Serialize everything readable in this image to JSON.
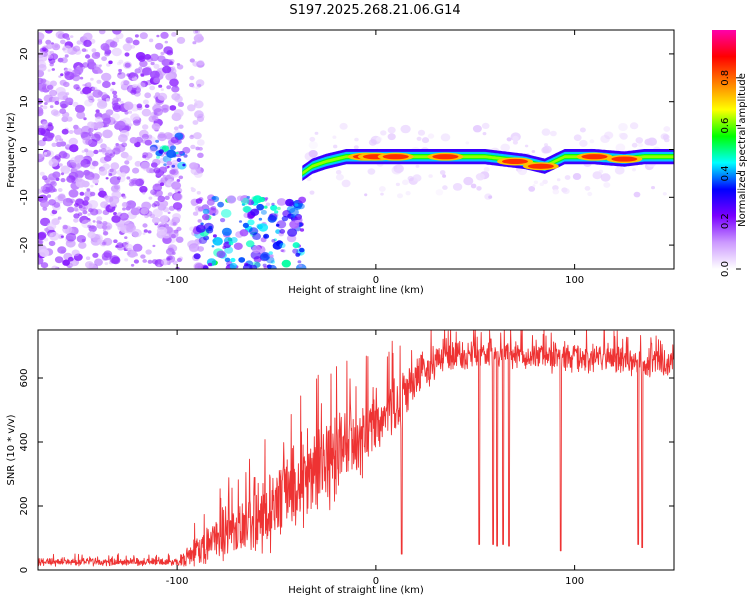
{
  "title": "S197.2025.268.21.06.G14",
  "chart_data": [
    {
      "type": "heatmap",
      "id": "spectrogram",
      "xlabel": "Height of straight line (km)",
      "ylabel": "Frequency (Hz)",
      "xlim": [
        -170,
        150
      ],
      "ylim": [
        -25,
        25
      ],
      "xticks": [
        -100,
        0,
        100
      ],
      "yticks": [
        -20,
        -10,
        0,
        10,
        20
      ],
      "colorbar": {
        "label": "Normalized spectral amplitude",
        "range": [
          0,
          1
        ],
        "ticks": [
          0.0,
          0.2,
          0.4,
          0.6,
          0.8
        ],
        "tick_labels": [
          "0.0",
          "0.2",
          "0.4",
          "0.6",
          "0.8"
        ],
        "colormap": [
          "#ffffff",
          "#cc99ff",
          "#7a00ff",
          "#0000ff",
          "#00ffff",
          "#00ff00",
          "#ffff00",
          "#ff8000",
          "#ff0000",
          "#ff00aa"
        ]
      },
      "regions": [
        {
          "name": "noise-left",
          "x": [
            -170,
            -98
          ],
          "f": [
            -25,
            25
          ],
          "amplitude": 0.15
        },
        {
          "name": "cluster-left",
          "x": [
            -113,
            -95
          ],
          "f": [
            -4,
            3
          ],
          "amplitude": 0.35
        },
        {
          "name": "noise-mid",
          "x": [
            -93,
            -88
          ],
          "f": [
            -25,
            25
          ],
          "amplitude": 0.1
        },
        {
          "name": "low-patch",
          "x": [
            -90,
            -37
          ],
          "f": [
            -25,
            -10
          ],
          "amplitude": 0.35
        },
        {
          "name": "noise-right",
          "x": [
            -37,
            150
          ],
          "f": [
            -10,
            5
          ],
          "amplitude": 0.05
        }
      ],
      "ridge": [
        {
          "x": -37,
          "f": -5
        },
        {
          "x": -32,
          "f": -3.5
        },
        {
          "x": -25,
          "f": -2.5
        },
        {
          "x": -15,
          "f": -1.5
        },
        {
          "x": 0,
          "f": -1.5
        },
        {
          "x": 20,
          "f": -1.5
        },
        {
          "x": 40,
          "f": -1.5
        },
        {
          "x": 55,
          "f": -1.5
        },
        {
          "x": 65,
          "f": -2
        },
        {
          "x": 75,
          "f": -2.5
        },
        {
          "x": 85,
          "f": -3.5
        },
        {
          "x": 95,
          "f": -1.5
        },
        {
          "x": 110,
          "f": -1.5
        },
        {
          "x": 125,
          "f": -2
        },
        {
          "x": 135,
          "f": -1.5
        },
        {
          "x": 150,
          "f": -1.5
        }
      ],
      "ridge_peaks": [
        {
          "x": -5,
          "f": -1.5
        },
        {
          "x": 0,
          "f": -1.5
        },
        {
          "x": 10,
          "f": -1.5
        },
        {
          "x": 35,
          "f": -1.5
        },
        {
          "x": 70,
          "f": -2.5
        },
        {
          "x": 83,
          "f": -3.5
        },
        {
          "x": 110,
          "f": -1.5
        },
        {
          "x": 125,
          "f": -2
        }
      ]
    },
    {
      "type": "line",
      "id": "snr",
      "xlabel": "Height of straight line (km)",
      "ylabel": "SNR (10 * v/v)",
      "xlim": [
        -170,
        150
      ],
      "ylim": [
        0,
        750
      ],
      "xticks": [
        -100,
        0,
        100
      ],
      "yticks": [
        0,
        200,
        400,
        600
      ],
      "color": "#ee3333",
      "trend": [
        {
          "x": -170,
          "y": 25
        },
        {
          "x": -100,
          "y": 25
        },
        {
          "x": -90,
          "y": 55
        },
        {
          "x": -80,
          "y": 95
        },
        {
          "x": -70,
          "y": 130
        },
        {
          "x": -60,
          "y": 170
        },
        {
          "x": -50,
          "y": 205
        },
        {
          "x": -40,
          "y": 260
        },
        {
          "x": -30,
          "y": 320
        },
        {
          "x": -20,
          "y": 360
        },
        {
          "x": -10,
          "y": 400
        },
        {
          "x": 0,
          "y": 460
        },
        {
          "x": 10,
          "y": 510
        },
        {
          "x": 20,
          "y": 600
        },
        {
          "x": 30,
          "y": 650
        },
        {
          "x": 40,
          "y": 670
        },
        {
          "x": 60,
          "y": 675
        },
        {
          "x": 80,
          "y": 670
        },
        {
          "x": 100,
          "y": 665
        },
        {
          "x": 120,
          "y": 660
        },
        {
          "x": 135,
          "y": 640
        },
        {
          "x": 150,
          "y": 650
        }
      ],
      "noise_amplitude": [
        {
          "x": -170,
          "y": 15
        },
        {
          "x": -100,
          "y": 15
        },
        {
          "x": -90,
          "y": 60
        },
        {
          "x": -60,
          "y": 140
        },
        {
          "x": -30,
          "y": 180
        },
        {
          "x": -10,
          "y": 150
        },
        {
          "x": 10,
          "y": 120
        },
        {
          "x": 30,
          "y": 60
        },
        {
          "x": 150,
          "y": 50
        }
      ],
      "dips": [
        {
          "x": 13,
          "y": 50
        },
        {
          "x": 52,
          "y": 80
        },
        {
          "x": 59,
          "y": 80
        },
        {
          "x": 61,
          "y": 75
        },
        {
          "x": 64,
          "y": 80
        },
        {
          "x": 67,
          "y": 75
        },
        {
          "x": 93,
          "y": 60
        },
        {
          "x": 132,
          "y": 80
        },
        {
          "x": 134,
          "y": 70
        }
      ]
    }
  ]
}
